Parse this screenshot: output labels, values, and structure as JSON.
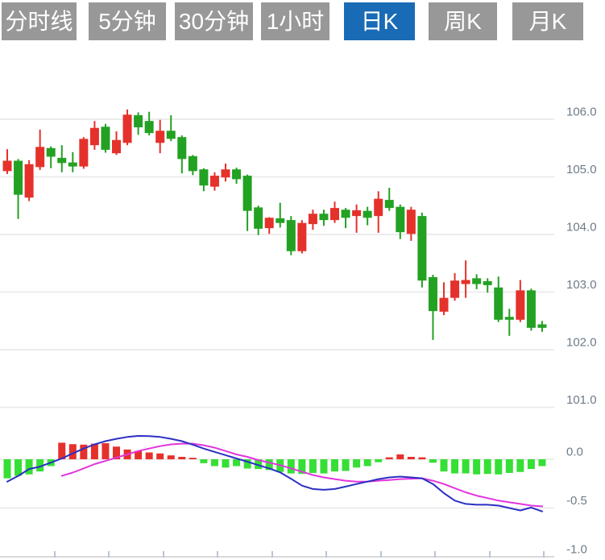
{
  "tabs": {
    "items": [
      {
        "id": "timeshare",
        "label": "分时线",
        "active": false
      },
      {
        "id": "5min",
        "label": "5分钟",
        "active": false
      },
      {
        "id": "30min",
        "label": "30分钟",
        "active": false
      },
      {
        "id": "1hour",
        "label": "1小时",
        "active": false
      },
      {
        "id": "daily-k",
        "label": "日K",
        "active": true
      },
      {
        "id": "weekly-k",
        "label": "周K",
        "active": false
      },
      {
        "id": "monthly-k",
        "label": "月K",
        "active": false
      }
    ],
    "colors": {
      "active_bg": "#1a6bb5",
      "inactive_bg": "#989898",
      "text": "#ffffff"
    }
  },
  "chart_data": {
    "type": "candlestick",
    "panes": [
      "price",
      "macd"
    ],
    "grid": true,
    "legend": "none",
    "price_axis": {
      "side": "right",
      "ticks": [
        106.0,
        105.0,
        104.0,
        103.0,
        102.0,
        101.0
      ],
      "tick_labels": [
        "106.0",
        "105.0",
        "104.0",
        "103.0",
        "102.0",
        "101.0"
      ],
      "range_shown": [
        101.0,
        106.0
      ]
    },
    "macd_axis": {
      "side": "right",
      "ticks": [
        0.0,
        -0.5,
        -1.0
      ],
      "tick_labels": [
        "0.0",
        "-0.5",
        "-1.0"
      ],
      "range_shown": [
        -1.0,
        0.0
      ]
    },
    "colors": {
      "up": "#e5312b",
      "down": "#23a123",
      "hist_up": "#e5312b",
      "hist_down": "#35df35",
      "dif_line": "#2b2fc3",
      "dea_line": "#e234de",
      "grid": "#ececec",
      "axis_line": "#d9d9d9",
      "axis_tick": "#b9c3d7",
      "axis_text": "#6e7b87",
      "background": "#ffffff"
    },
    "candles": {
      "note": "ohlc = [open, high, low, close]; close>open rendered red (up), close<open green (down)",
      "ohlc": [
        [
          105.1,
          105.48,
          105.05,
          105.28
        ],
        [
          105.28,
          105.31,
          104.27,
          104.69
        ],
        [
          104.64,
          105.29,
          104.58,
          105.22
        ],
        [
          105.17,
          105.82,
          105.12,
          105.52
        ],
        [
          105.5,
          105.53,
          105.15,
          105.35
        ],
        [
          105.33,
          105.55,
          105.08,
          105.24
        ],
        [
          105.25,
          105.43,
          105.08,
          105.18
        ],
        [
          105.18,
          105.69,
          105.14,
          105.66
        ],
        [
          105.55,
          105.97,
          105.47,
          105.85
        ],
        [
          105.87,
          105.92,
          105.42,
          105.47
        ],
        [
          105.41,
          105.79,
          105.38,
          105.64
        ],
        [
          105.59,
          106.17,
          105.55,
          106.08
        ],
        [
          106.07,
          106.12,
          105.73,
          105.86
        ],
        [
          105.97,
          106.13,
          105.72,
          105.76
        ],
        [
          105.59,
          105.99,
          105.41,
          105.8
        ],
        [
          105.8,
          106.07,
          105.62,
          105.66
        ],
        [
          105.69,
          105.72,
          105.06,
          105.31
        ],
        [
          105.36,
          105.38,
          105.03,
          105.1
        ],
        [
          105.13,
          105.15,
          104.75,
          104.85
        ],
        [
          104.83,
          105.08,
          104.76,
          105.02
        ],
        [
          104.99,
          105.23,
          104.92,
          105.13
        ],
        [
          105.13,
          105.16,
          104.88,
          104.96
        ],
        [
          105.02,
          105.04,
          104.06,
          104.41
        ],
        [
          104.47,
          104.5,
          103.99,
          104.1
        ],
        [
          104.11,
          104.3,
          104.01,
          104.29
        ],
        [
          104.28,
          104.55,
          104.12,
          104.2
        ],
        [
          104.25,
          104.32,
          103.64,
          103.71
        ],
        [
          103.71,
          104.25,
          103.67,
          104.2
        ],
        [
          104.18,
          104.43,
          104.08,
          104.36
        ],
        [
          104.36,
          104.43,
          104.15,
          104.25
        ],
        [
          104.25,
          104.57,
          104.2,
          104.46
        ],
        [
          104.43,
          104.46,
          104.11,
          104.29
        ],
        [
          104.32,
          104.52,
          104.03,
          104.42
        ],
        [
          104.41,
          104.48,
          104.16,
          104.29
        ],
        [
          104.32,
          104.75,
          104.03,
          104.62
        ],
        [
          104.6,
          104.81,
          104.41,
          104.46
        ],
        [
          104.48,
          104.52,
          103.92,
          104.04
        ],
        [
          104.01,
          104.48,
          103.89,
          104.43
        ],
        [
          104.32,
          104.38,
          103.08,
          103.2
        ],
        [
          103.26,
          103.3,
          102.17,
          102.67
        ],
        [
          102.66,
          103.17,
          102.6,
          102.9
        ],
        [
          102.9,
          103.33,
          102.85,
          103.2
        ],
        [
          103.14,
          103.55,
          102.9,
          103.21
        ],
        [
          103.24,
          103.31,
          103.05,
          103.14
        ],
        [
          103.19,
          103.24,
          102.99,
          103.12
        ],
        [
          103.08,
          103.27,
          102.48,
          102.52
        ],
        [
          102.57,
          102.71,
          102.24,
          102.52
        ],
        [
          102.52,
          103.21,
          102.48,
          103.03
        ],
        [
          103.03,
          103.06,
          102.33,
          102.38
        ],
        [
          102.44,
          102.5,
          102.31,
          102.38
        ]
      ]
    },
    "macd": {
      "hist": [
        -0.195,
        -0.17,
        -0.155,
        -0.125,
        -0.07,
        0.17,
        0.155,
        0.15,
        0.16,
        0.165,
        0.13,
        0.1,
        0.085,
        0.07,
        0.06,
        0.04,
        0.025,
        0.015,
        -0.04,
        -0.07,
        -0.085,
        -0.07,
        -0.095,
        -0.1,
        -0.11,
        -0.13,
        -0.145,
        -0.15,
        -0.14,
        -0.145,
        -0.125,
        -0.12,
        -0.085,
        -0.07,
        -0.03,
        0.02,
        0.05,
        0.025,
        0.02,
        -0.035,
        -0.125,
        -0.145,
        -0.145,
        -0.155,
        -0.15,
        -0.155,
        -0.14,
        -0.13,
        -0.1,
        -0.07
      ],
      "dif": [
        -0.23,
        -0.17,
        -0.1,
        -0.075,
        -0.034,
        0.008,
        0.06,
        0.11,
        0.153,
        0.186,
        0.21,
        0.229,
        0.24,
        0.237,
        0.229,
        0.21,
        0.186,
        0.15,
        0.11,
        0.076,
        0.042,
        0.008,
        -0.025,
        -0.06,
        -0.093,
        -0.135,
        -0.2,
        -0.27,
        -0.305,
        -0.313,
        -0.305,
        -0.28,
        -0.254,
        -0.229,
        -0.203,
        -0.186,
        -0.178,
        -0.186,
        -0.195,
        -0.254,
        -0.347,
        -0.424,
        -0.458,
        -0.466,
        -0.466,
        -0.475,
        -0.5,
        -0.525,
        -0.495,
        -0.535
      ],
      "dea": [
        null,
        null,
        null,
        null,
        null,
        -0.17,
        -0.136,
        -0.093,
        -0.05,
        -0.017,
        0.017,
        0.05,
        0.085,
        0.11,
        0.135,
        0.153,
        0.16,
        0.16,
        0.144,
        0.119,
        0.085,
        0.05,
        0.025,
        -0.008,
        -0.034,
        -0.06,
        -0.093,
        -0.127,
        -0.161,
        -0.186,
        -0.203,
        -0.22,
        -0.229,
        -0.229,
        -0.22,
        -0.212,
        -0.203,
        -0.199,
        -0.195,
        -0.22,
        -0.254,
        -0.297,
        -0.339,
        -0.373,
        -0.398,
        -0.424,
        -0.441,
        -0.458,
        -0.475,
        -0.483
      ]
    }
  }
}
